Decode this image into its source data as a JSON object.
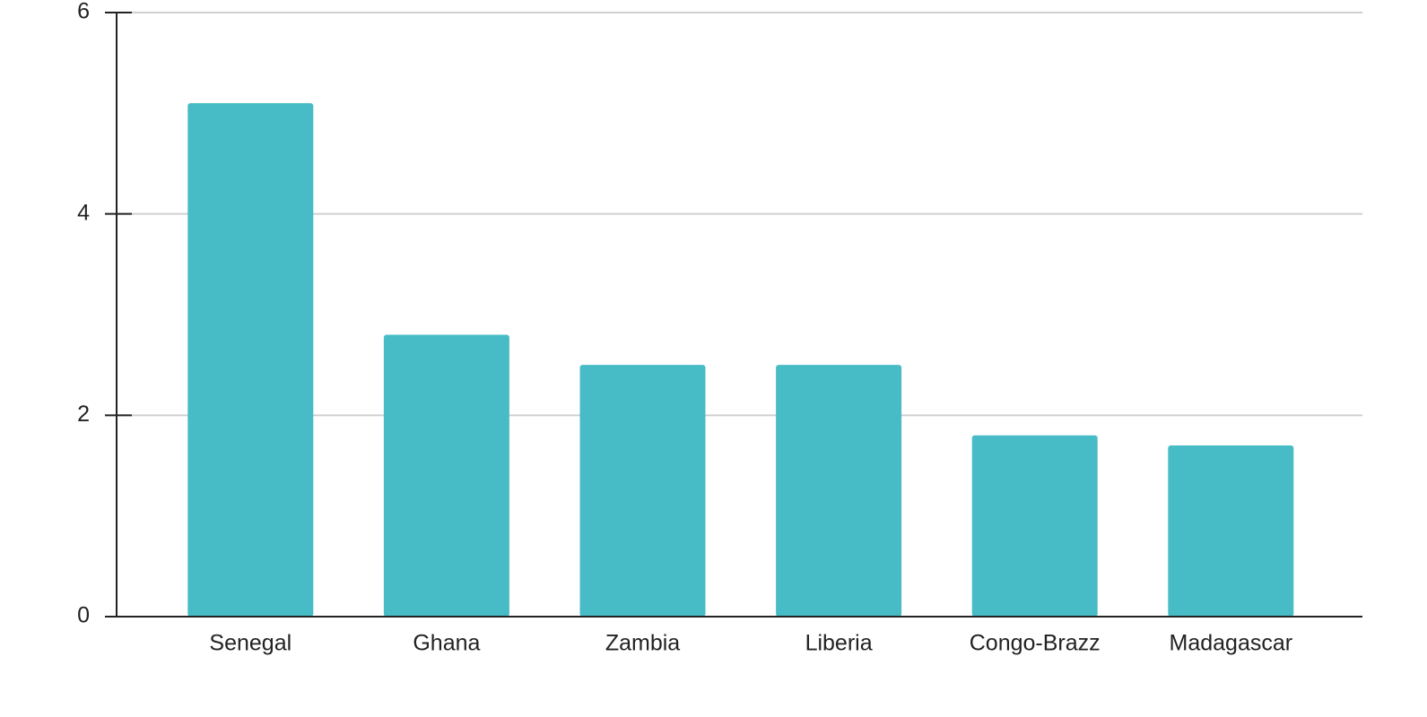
{
  "chart_data": {
    "type": "bar",
    "categories": [
      "Senegal",
      "Ghana",
      "Zambia",
      "Liberia",
      "Congo-Brazz",
      "Madagascar"
    ],
    "values": [
      5.1,
      2.8,
      2.5,
      2.5,
      1.8,
      1.7
    ],
    "color": "#47bcc6",
    "ylim": [
      0,
      6
    ],
    "yticks": [
      0,
      2,
      4,
      6
    ],
    "grid": true
  }
}
